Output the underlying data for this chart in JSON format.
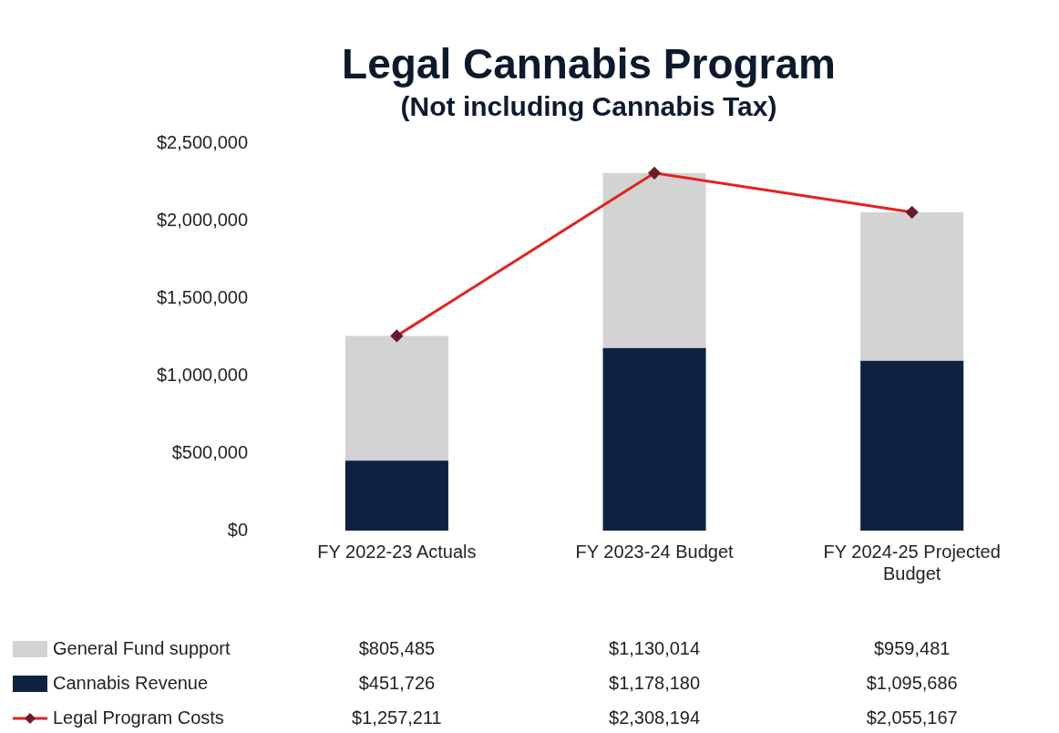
{
  "chart_data": {
    "type": "bar",
    "title": "Legal Cannabis Program",
    "subtitle": "(Not including Cannabis Tax)",
    "categories": [
      "FY 2022-23 Actuals",
      "FY 2023-24 Budget",
      "FY 2024-25 Projected Budget"
    ],
    "stacked": true,
    "grid": false,
    "legend": "bottom left",
    "marker": "diamond",
    "ylim": [
      0,
      2500000
    ],
    "yticks": [
      {
        "value": 0,
        "label": "$0"
      },
      {
        "value": 500000,
        "label": "$500,000"
      },
      {
        "value": 1000000,
        "label": "$1,000,000"
      },
      {
        "value": 1500000,
        "label": "$1,500,000"
      },
      {
        "value": 2000000,
        "label": "$2,000,000"
      },
      {
        "value": 2500000,
        "label": "$2,500,000"
      }
    ],
    "series": [
      {
        "name": "Cannabis Revenue",
        "color": "#0d2240",
        "values": [
          451726,
          1178180,
          1095686
        ],
        "value_labels": [
          "$451,726",
          "$1,178,180",
          "$1,095,686"
        ]
      },
      {
        "name": "General Fund support",
        "color": "#d3d3d3",
        "values": [
          805485,
          1130014,
          959481
        ],
        "value_labels": [
          "$805,485",
          "$1,130,014",
          "$959,481"
        ]
      },
      {
        "name": "Legal Program Costs",
        "type": "line",
        "color": "#e02420",
        "values": [
          1257211,
          2308194,
          2055167
        ],
        "value_labels": [
          "$1,257,211",
          "$2,308,194",
          "$2,055,167"
        ]
      }
    ]
  }
}
